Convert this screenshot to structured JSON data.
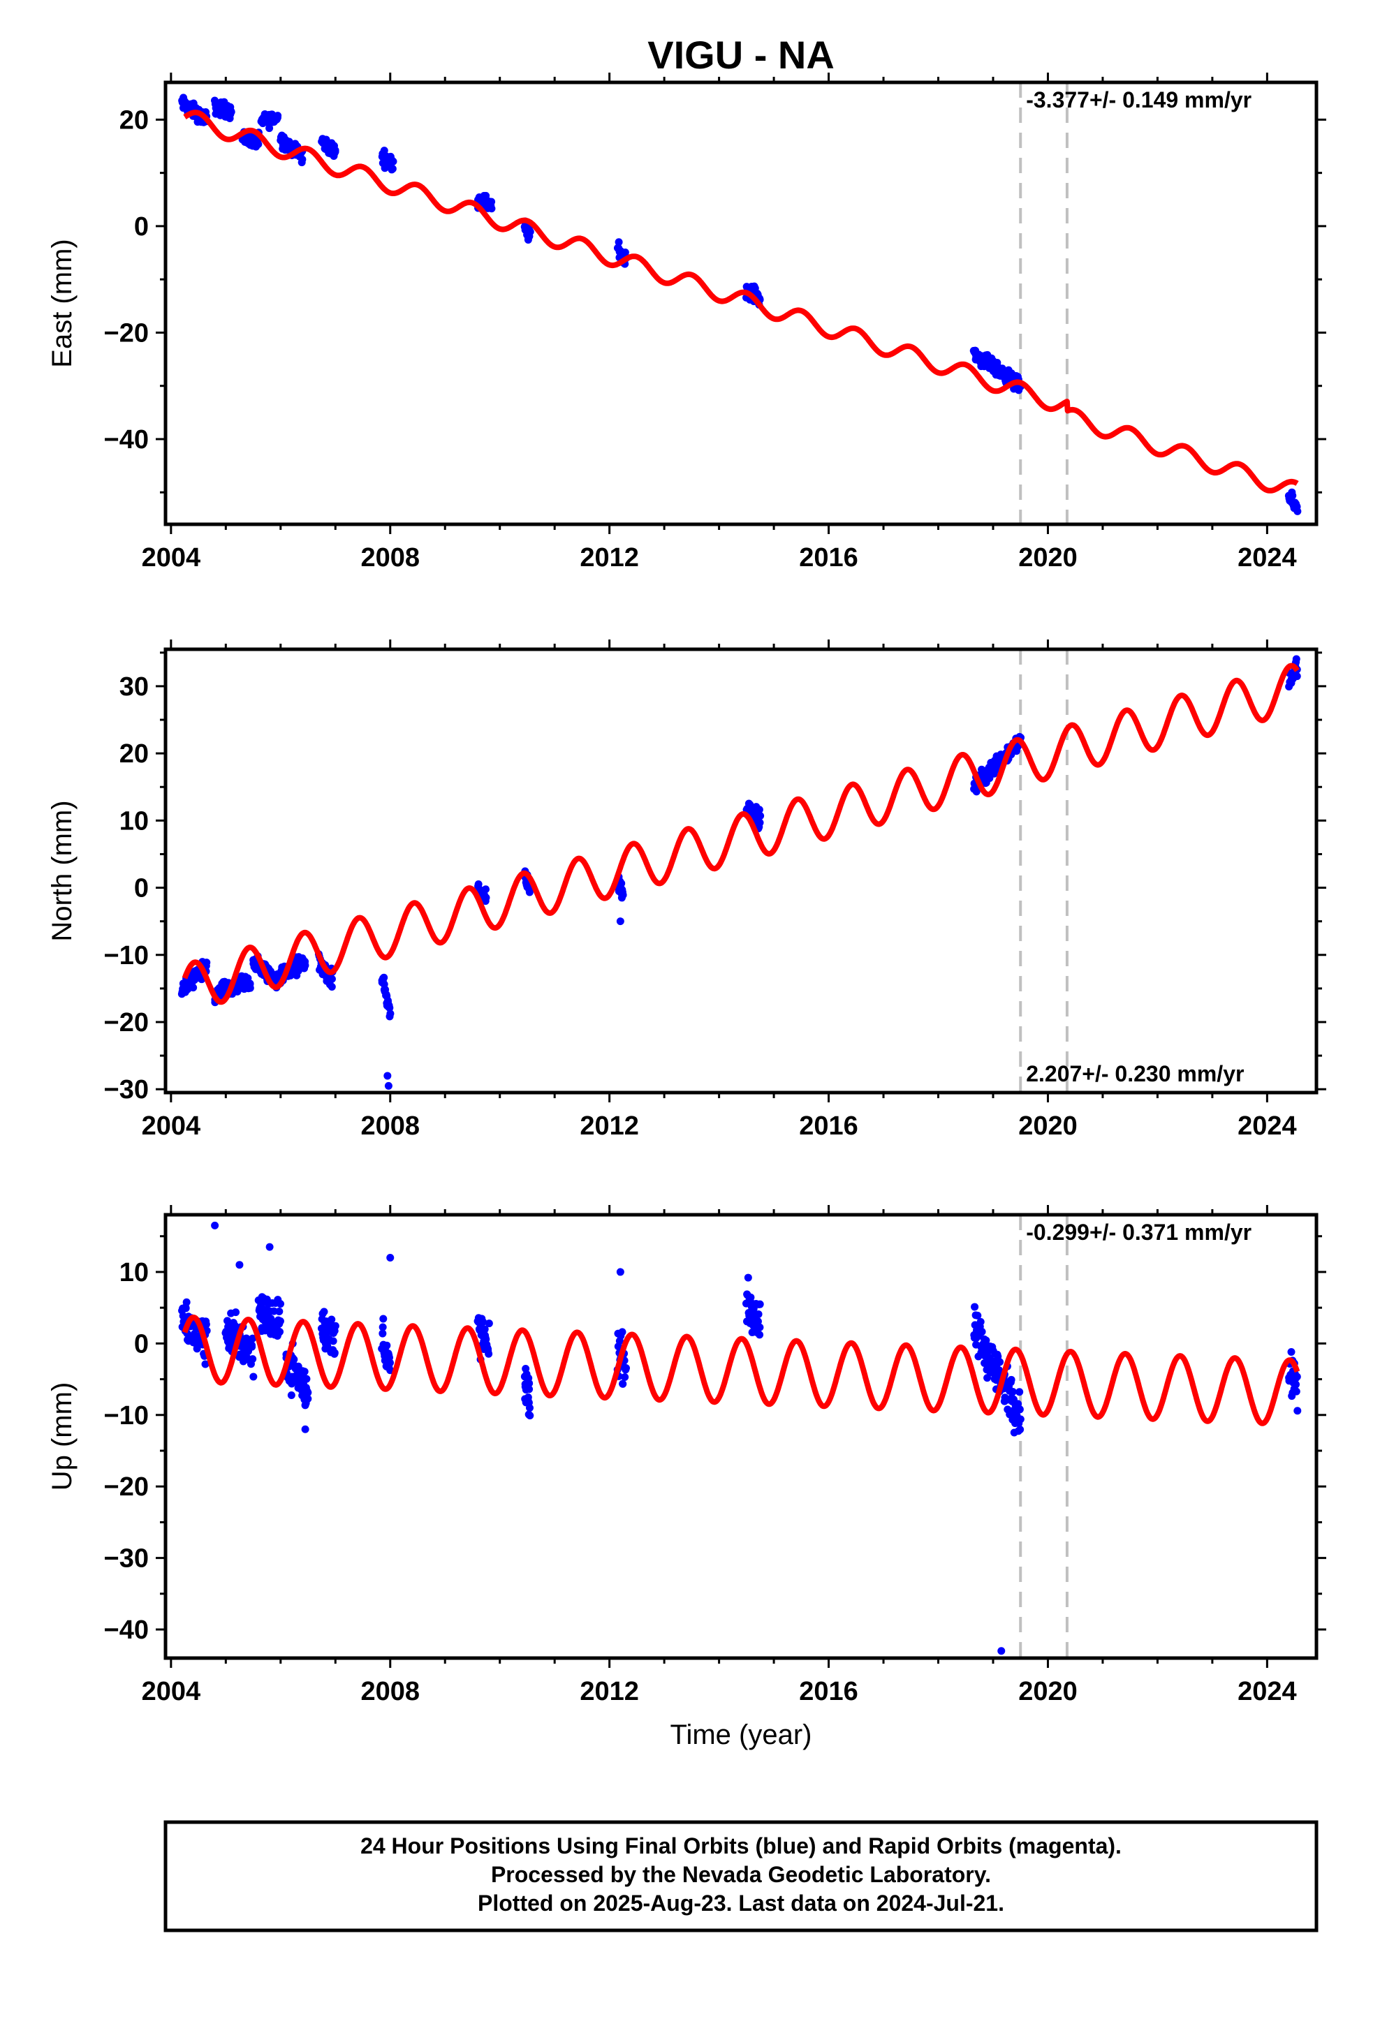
{
  "title": "VIGU - NA",
  "xlabel": "Time (year)",
  "footer": {
    "line1": "24 Hour Positions Using Final Orbits (blue) and Rapid Orbits (magenta).",
    "line2": "Processed by the Nevada Geodetic Laboratory.",
    "line3": "Plotted on 2025-Aug-23. Last data on 2024-Jul-21."
  },
  "colors": {
    "data": "#0000ff",
    "model": "#ff0000",
    "breaks": "#c0c0c0",
    "frame": "#000000"
  },
  "chart_data": [
    {
      "type": "scatter",
      "name": "east",
      "ylabel": "East (mm)",
      "xlim": [
        2003.9,
        2024.9
      ],
      "ylim": [
        -56,
        27
      ],
      "yticks": [
        -40,
        -20,
        0,
        20
      ],
      "xticks": [
        2004,
        2008,
        2012,
        2016,
        2020,
        2024
      ],
      "rate_label": "-3.377+/- 0.149 mm/yr",
      "rate_pos": "top-right",
      "breaks": [
        2019.5,
        2020.35
      ],
      "model": {
        "intercept": 20.5,
        "t0": 2004.25,
        "rate": -3.377,
        "amp": 1.6,
        "phase": 0.0,
        "offsets": [
          {
            "t": 2020.35,
            "dy": -1.8
          }
        ],
        "end": 2024.55
      },
      "segments": [
        {
          "x": [
            2004.2,
            2004.65
          ],
          "y": [
            23,
            20
          ]
        },
        {
          "x": [
            2004.8,
            2005.1
          ],
          "y": [
            22.5,
            21.5
          ]
        },
        {
          "x": [
            2005.3,
            2005.6
          ],
          "y": [
            16.5,
            16
          ]
        },
        {
          "x": [
            2005.65,
            2005.95
          ],
          "y": [
            19.5,
            20.5
          ]
        },
        {
          "x": [
            2006.0,
            2006.4
          ],
          "y": [
            16.5,
            13
          ]
        },
        {
          "x": [
            2006.75,
            2007.0
          ],
          "y": [
            16,
            14
          ]
        },
        {
          "x": [
            2007.85,
            2008.05
          ],
          "y": [
            13,
            11.5
          ]
        },
        {
          "x": [
            2009.6,
            2009.85
          ],
          "y": [
            5,
            4
          ]
        },
        {
          "x": [
            2010.45,
            2010.55
          ],
          "y": [
            0,
            -2
          ]
        },
        {
          "x": [
            2012.15,
            2012.3
          ],
          "y": [
            -4,
            -6
          ]
        },
        {
          "x": [
            2014.5,
            2014.75
          ],
          "y": [
            -12,
            -13.5
          ]
        },
        {
          "x": [
            2018.65,
            2019.5
          ],
          "y": [
            -24,
            -30
          ]
        },
        {
          "x": [
            2024.4,
            2024.55
          ],
          "y": [
            -51,
            -53
          ]
        }
      ]
    },
    {
      "type": "scatter",
      "name": "north",
      "ylabel": "North (mm)",
      "xlim": [
        2003.9,
        2024.9
      ],
      "ylim": [
        -30.5,
        35.5
      ],
      "yticks": [
        -30,
        -20,
        -10,
        0,
        10,
        20,
        30
      ],
      "xticks": [
        2004,
        2008,
        2012,
        2016,
        2020,
        2024
      ],
      "rate_label": "2.207+/- 0.230 mm/yr",
      "rate_pos": "bottom-right",
      "breaks": [
        2019.5,
        2020.35
      ],
      "model": {
        "intercept": -15.0,
        "t0": 2004.25,
        "rate": 2.207,
        "amp": 3.5,
        "phase": 0.45,
        "offsets": [],
        "end": 2024.55
      },
      "segments": [
        {
          "x": [
            2004.2,
            2004.65
          ],
          "y": [
            -15,
            -12
          ]
        },
        {
          "x": [
            2004.8,
            2005.45
          ],
          "y": [
            -16,
            -14
          ]
        },
        {
          "x": [
            2005.5,
            2005.95
          ],
          "y": [
            -11,
            -14
          ]
        },
        {
          "x": [
            2006.0,
            2006.45
          ],
          "y": [
            -13,
            -11
          ]
        },
        {
          "x": [
            2006.7,
            2006.95
          ],
          "y": [
            -11,
            -14
          ]
        },
        {
          "x": [
            2007.85,
            2008.0
          ],
          "y": [
            -13,
            -19
          ]
        },
        {
          "x": [
            2009.6,
            2009.75
          ],
          "y": [
            0,
            -2
          ]
        },
        {
          "x": [
            2010.45,
            2010.55
          ],
          "y": [
            2,
            0
          ]
        },
        {
          "x": [
            2012.15,
            2012.25
          ],
          "y": [
            1,
            -1
          ]
        },
        {
          "x": [
            2014.5,
            2014.75
          ],
          "y": [
            12,
            10
          ]
        },
        {
          "x": [
            2018.65,
            2019.5
          ],
          "y": [
            15,
            22
          ]
        },
        {
          "x": [
            2024.4,
            2024.55
          ],
          "y": [
            31,
            33
          ]
        }
      ],
      "outliers": {
        "x": [
          2007.95,
          2007.97,
          2012.2
        ],
        "y": [
          -28,
          -29.5,
          -5
        ]
      }
    },
    {
      "type": "scatter",
      "name": "up",
      "ylabel": "Up (mm)",
      "xlim": [
        2003.9,
        2024.9
      ],
      "ylim": [
        -44,
        18
      ],
      "yticks": [
        -40,
        -30,
        -20,
        -10,
        0,
        10
      ],
      "xticks": [
        2004,
        2008,
        2012,
        2016,
        2020,
        2024
      ],
      "rate_label": "-0.299+/- 0.371 mm/yr",
      "rate_pos": "top-right",
      "breaks": [
        2019.5,
        2020.35
      ],
      "model": {
        "intercept": -0.8,
        "t0": 2004.25,
        "rate": -0.299,
        "amp": 4.5,
        "phase": 0.55,
        "offsets": [],
        "end": 2024.55
      },
      "segments": [
        {
          "x": [
            2004.2,
            2004.65
          ],
          "y": [
            3,
            0
          ]
        },
        {
          "x": [
            2005.0,
            2005.5
          ],
          "y": [
            2,
            -1
          ]
        },
        {
          "x": [
            2005.6,
            2006.0
          ],
          "y": [
            5,
            2
          ]
        },
        {
          "x": [
            2006.1,
            2006.5
          ],
          "y": [
            -2,
            -7
          ]
        },
        {
          "x": [
            2006.75,
            2007.0
          ],
          "y": [
            3,
            0
          ]
        },
        {
          "x": [
            2007.85,
            2008.0
          ],
          "y": [
            2,
            -4
          ]
        },
        {
          "x": [
            2009.6,
            2009.8
          ],
          "y": [
            2,
            -1
          ]
        },
        {
          "x": [
            2010.45,
            2010.55
          ],
          "y": [
            -5,
            -8
          ]
        },
        {
          "x": [
            2012.15,
            2012.3
          ],
          "y": [
            -1,
            -3
          ]
        },
        {
          "x": [
            2014.5,
            2014.75
          ],
          "y": [
            6,
            2
          ]
        },
        {
          "x": [
            2018.65,
            2019.5
          ],
          "y": [
            2,
            -10
          ]
        },
        {
          "x": [
            2024.4,
            2024.55
          ],
          "y": [
            -3,
            -6
          ]
        }
      ],
      "outliers": {
        "x": [
          2004.8,
          2005.25,
          2005.8,
          2006.45,
          2008.0,
          2012.2,
          2019.15
        ],
        "y": [
          16.5,
          11,
          13.5,
          -12,
          12,
          10,
          -43
        ]
      }
    }
  ]
}
